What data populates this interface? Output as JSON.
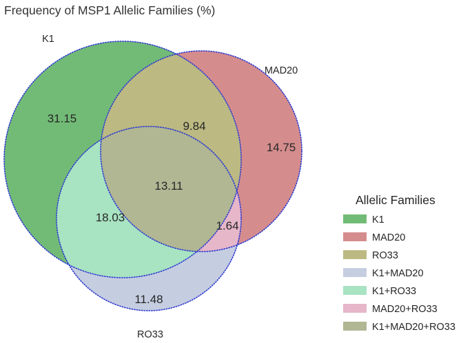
{
  "chart_data": {
    "type": "venn3",
    "title": "Frequency of MSP1 Allelic Families (%)",
    "sets": [
      "K1",
      "MAD20",
      "RO33"
    ],
    "regions": [
      {
        "id": "K1",
        "label": "K1",
        "value": "31.15",
        "color": "#72bb76"
      },
      {
        "id": "MAD20",
        "label": "MAD20",
        "value": "14.75",
        "color": "#d58c8d"
      },
      {
        "id": "RO33",
        "label": "RO33",
        "value": "11.48",
        "color": "#c5cde1"
      },
      {
        "id": "K1_MAD20",
        "label": "K1+MAD20",
        "value": "9.84",
        "color": "#bcb982"
      },
      {
        "id": "K1_RO33",
        "label": "K1+RO33",
        "value": "18.03",
        "color": "#a8e3c2"
      },
      {
        "id": "MAD20_RO33",
        "label": "MAD20+RO33",
        "value": "1.64",
        "color": "#e6b6c9"
      },
      {
        "id": "K1_MAD20_RO33",
        "label": "K1+MAD20+RO33",
        "value": "13.11",
        "color": "#b1b693"
      }
    ],
    "legend": {
      "title": "Allelic Families",
      "position": "right",
      "entries": [
        {
          "label": "K1",
          "color": "#72bb76"
        },
        {
          "label": "MAD20",
          "color": "#d58c8d"
        },
        {
          "label": "RO33",
          "color": "#bcb982"
        },
        {
          "label": "K1+MAD20",
          "color": "#c5cde1"
        },
        {
          "label": "K1+RO33",
          "color": "#a8e3c2"
        },
        {
          "label": "MAD20+RO33",
          "color": "#e6b6c9"
        },
        {
          "label": "K1+MAD20+RO33",
          "color": "#b1b693"
        }
      ]
    },
    "outline_color": "#2d3ad0"
  }
}
